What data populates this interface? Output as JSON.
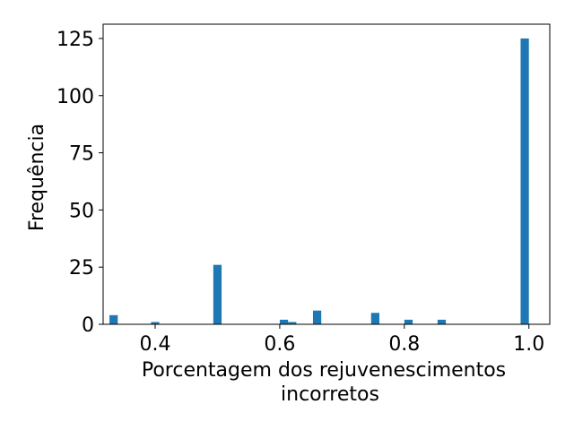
{
  "chart_data": {
    "type": "bar",
    "title": "",
    "xlabel_lines": [
      "Porcentagem dos rejuvenescimentos",
      "incorretos"
    ],
    "ylabel": "Frequência",
    "xlim": [
      0.3165,
      1.0335
    ],
    "ylim": [
      0,
      131.25
    ],
    "xticks": [
      0.4,
      0.6,
      0.8,
      1.0
    ],
    "xtick_labels": [
      "0.4",
      "0.6",
      "0.8",
      "1.0"
    ],
    "yticks": [
      0,
      25,
      50,
      75,
      100,
      125
    ],
    "ytick_labels": [
      "0",
      "25",
      "50",
      "75",
      "100",
      "125"
    ],
    "bin_width": 0.0133,
    "grid": false,
    "bar_color": "#1f77b4",
    "bins": [
      {
        "x": 0.3333,
        "value": 4
      },
      {
        "x": 0.4,
        "value": 1
      },
      {
        "x": 0.5,
        "value": 26
      },
      {
        "x": 0.6067,
        "value": 2
      },
      {
        "x": 0.62,
        "value": 1
      },
      {
        "x": 0.66,
        "value": 6
      },
      {
        "x": 0.7533,
        "value": 5
      },
      {
        "x": 0.8067,
        "value": 2
      },
      {
        "x": 0.86,
        "value": 2
      },
      {
        "x": 0.9933,
        "value": 125
      }
    ]
  }
}
